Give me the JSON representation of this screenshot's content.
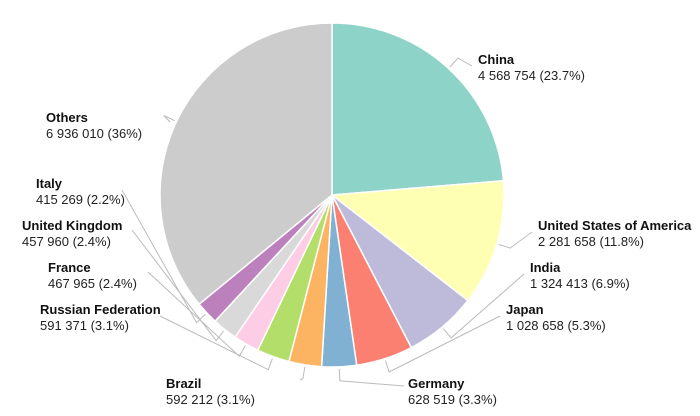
{
  "chart_data": {
    "type": "pie",
    "slices": [
      {
        "name": "China",
        "value": 4568754,
        "display": "4 568 754 (23.7%)",
        "color": "#8dd3c7"
      },
      {
        "name": "United States of America",
        "value": 2281658,
        "display": "2 281 658 (11.8%)",
        "color": "#ffffb3"
      },
      {
        "name": "India",
        "value": 1324413,
        "display": "1 324 413 (6.9%)",
        "color": "#bebada"
      },
      {
        "name": "Japan",
        "value": 1028658,
        "display": "1 028 658 (5.3%)",
        "color": "#fb8072"
      },
      {
        "name": "Germany",
        "value": 628519,
        "display": "628 519 (3.3%)",
        "color": "#80b1d3"
      },
      {
        "name": "Brazil",
        "value": 592212,
        "display": "592 212 (3.1%)",
        "color": "#fdb462"
      },
      {
        "name": "Russian Federation",
        "value": 591371,
        "display": "591 371 (3.1%)",
        "color": "#b3de69"
      },
      {
        "name": "France",
        "value": 467965,
        "display": "467 965 (2.4%)",
        "color": "#fccde5"
      },
      {
        "name": "United Kingdom",
        "value": 457960,
        "display": "457 960 (2.4%)",
        "color": "#d9d9d9"
      },
      {
        "name": "Italy",
        "value": 415269,
        "display": "415 269 (2.2%)",
        "color": "#bc80bd"
      },
      {
        "name": "Others",
        "value": 6936010,
        "display": "6 936 010 (36%)",
        "color": "#cccccc"
      }
    ]
  }
}
